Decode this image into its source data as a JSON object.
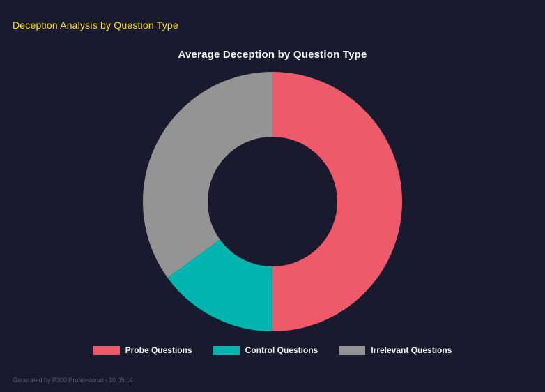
{
  "header": {
    "title": "Deception Analysis by Question Type",
    "color": "#ffe100"
  },
  "chart_data": {
    "type": "pie",
    "variant": "donut",
    "title": "Average Deception by Question Type",
    "categories": [
      "Probe Questions",
      "Control Questions",
      "Irrelevant Questions"
    ],
    "values": [
      50,
      15,
      35
    ],
    "colors": [
      "#ee5a6a",
      "#00b5ad",
      "#949494"
    ],
    "cutout_percent": 50,
    "start_angle_deg": 0,
    "direction": "clockwise",
    "legend_position": "bottom",
    "background": "#1a1a2e"
  },
  "footer": {
    "text": "Generated by P300 Professional - 10:05:14"
  }
}
